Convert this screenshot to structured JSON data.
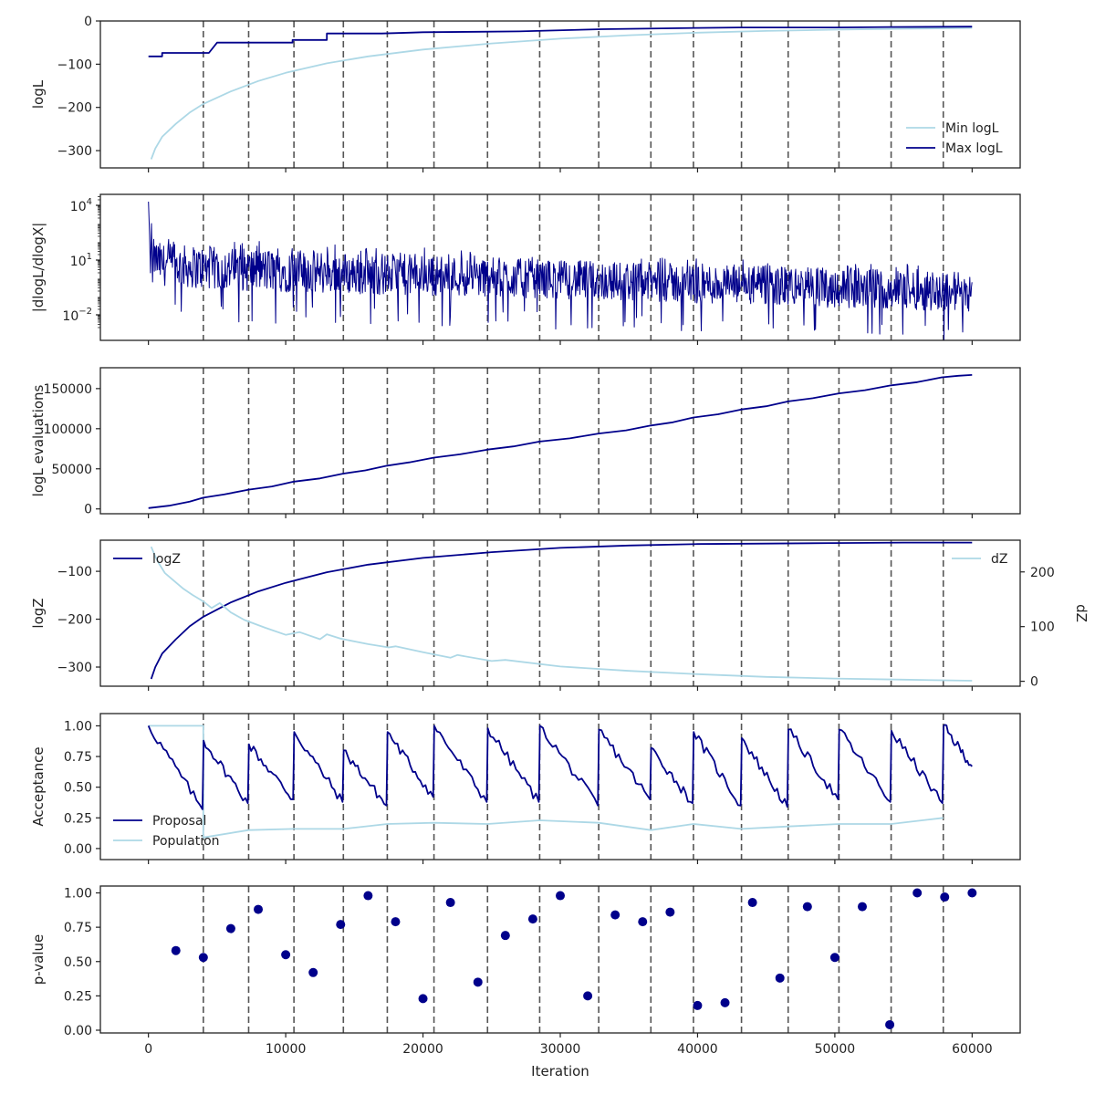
{
  "figure": {
    "shared_xlabel": "Iteration",
    "x_ticks": [
      0,
      10000,
      20000,
      30000,
      40000,
      50000,
      60000
    ],
    "xlim": [
      -3500,
      63500
    ]
  },
  "colors": {
    "dark": "#00008b",
    "light": "#add8e6",
    "vline": "#555555"
  },
  "chart_data": [
    {
      "type": "line",
      "ylabel": "logL",
      "ylim": [
        -340,
        0
      ],
      "y_ticks": [
        0,
        -100,
        -200,
        -300
      ],
      "legend": "bottom-right",
      "series": [
        {
          "name": "Min logL",
          "x": [
            200,
            500,
            1000,
            2000,
            3000,
            4000,
            6000,
            8000,
            10000,
            13000,
            16000,
            20000,
            25000,
            30000,
            35000,
            40000,
            45000,
            50000,
            55000,
            60000
          ],
          "y": [
            -320,
            -295,
            -268,
            -238,
            -212,
            -192,
            -163,
            -139,
            -120,
            -98,
            -82,
            -66,
            -52,
            -41,
            -33,
            -27,
            -23,
            -20,
            -18,
            -16
          ]
        },
        {
          "name": "Max logL",
          "x": [
            0,
            1000,
            1000,
            4400,
            5000,
            10500,
            10500,
            13000,
            13000,
            17000,
            19000,
            20000,
            24000,
            27000,
            33000,
            40000,
            43000,
            50000,
            54000,
            60000
          ],
          "y": [
            -82,
            -82,
            -74,
            -74,
            -50,
            -50,
            -44,
            -44,
            -29,
            -29,
            -27,
            -26,
            -25,
            -24,
            -19,
            -16,
            -15,
            -15,
            -14,
            -13
          ]
        }
      ]
    },
    {
      "type": "line",
      "ylabel": "|dlogL/dlogX|",
      "yscale": "log",
      "ylim_log10": [
        -3.4,
        4.6
      ],
      "y_ticks": [
        {
          "base": "10",
          "exp": "4",
          "v": 4
        },
        {
          "base": "10",
          "exp": "1",
          "v": 1
        },
        {
          "base": "10",
          "exp": "−2",
          "v": -2
        }
      ],
      "series": [
        {
          "name": "",
          "envelope_x": [
            0,
            1000,
            5000,
            10000,
            15000,
            20000,
            25000,
            30000,
            35000,
            40000,
            45000,
            50000,
            55000,
            60000
          ],
          "envelope_upper_log10": [
            2.3,
            1.9,
            1.7,
            1.6,
            1.4,
            1.3,
            1.15,
            1.0,
            0.9,
            0.8,
            0.7,
            0.6,
            0.5,
            0.4
          ],
          "envelope_lower_log10": [
            0.0,
            -0.8,
            -1.1,
            -1.2,
            -1.3,
            -1.35,
            -1.4,
            -1.5,
            -1.6,
            -1.8,
            -1.9,
            -2.0,
            -2.1,
            -2.2
          ],
          "peak": [
            0,
            4.2
          ]
        }
      ]
    },
    {
      "type": "line",
      "ylabel": "logL evaluations",
      "ylim": [
        -6000,
        176000
      ],
      "y_ticks": [
        0,
        50000,
        100000,
        150000
      ],
      "series": [
        {
          "name": "",
          "x": [
            0,
            1500,
            3000,
            4000,
            5500,
            7300,
            9000,
            10600,
            12500,
            14200,
            15800,
            17400,
            19000,
            20800,
            22700,
            24700,
            26600,
            28500,
            30700,
            32800,
            34800,
            36600,
            38200,
            39700,
            41500,
            43200,
            45000,
            46600,
            48400,
            50300,
            52200,
            54100,
            56000,
            57800,
            59000,
            60000
          ],
          "y": [
            1000,
            4000,
            9000,
            14000,
            18000,
            24000,
            28000,
            34000,
            38000,
            44000,
            48000,
            54000,
            58000,
            64000,
            68000,
            74000,
            78000,
            84000,
            88000,
            94000,
            98000,
            104000,
            108000,
            114000,
            118000,
            124000,
            128000,
            134000,
            138000,
            144000,
            148000,
            154000,
            158000,
            164000,
            166000,
            167000
          ]
        }
      ]
    },
    {
      "type": "line",
      "ylabel": "logZ",
      "ylim": [
        -340,
        -35
      ],
      "y_ticks": [
        -100,
        -200,
        -300
      ],
      "y2label": "dZ",
      "y2lim": [
        -9,
        258
      ],
      "y2_ticks": [
        0,
        100,
        200
      ],
      "legend_left": "top-left",
      "legend_right": "top-right",
      "series": [
        {
          "name": "logZ",
          "axis": "left",
          "x": [
            200,
            500,
            1000,
            2000,
            3000,
            4000,
            6000,
            8000,
            10000,
            13000,
            16000,
            20000,
            25000,
            30000,
            35000,
            40000,
            45000,
            50000,
            55000,
            60000
          ],
          "y": [
            -325,
            -300,
            -272,
            -242,
            -215,
            -195,
            -165,
            -142,
            -124,
            -102,
            -86,
            -72,
            -60,
            -51,
            -46,
            -43,
            -42,
            -41,
            -40,
            -40
          ]
        },
        {
          "name": "dZ",
          "axis": "right",
          "x": [
            200,
            500,
            800,
            1200,
            1800,
            2500,
            3200,
            4000,
            4600,
            5200,
            6000,
            7000,
            8500,
            10000,
            11000,
            12500,
            13000,
            14000,
            16000,
            17500,
            18000,
            20000,
            22000,
            22500,
            25000,
            26000,
            30000,
            35000,
            40000,
            45000,
            50000,
            55000,
            60000
          ],
          "y": [
            246,
            228,
            214,
            198,
            185,
            170,
            158,
            146,
            134,
            143,
            126,
            112,
            98,
            85,
            90,
            77,
            86,
            78,
            68,
            62,
            64,
            53,
            43,
            48,
            37,
            39,
            27,
            19,
            13,
            8,
            5,
            3,
            1
          ]
        }
      ]
    },
    {
      "type": "line",
      "ylabel": "Acceptance",
      "ylim": [
        -0.09,
        1.1
      ],
      "y_ticks": [
        0.0,
        0.25,
        0.5,
        0.75,
        1.0
      ],
      "y_tick_labels": [
        "0.00",
        "0.25",
        "0.50",
        "0.75",
        "1.00"
      ],
      "legend": "bottom-left",
      "series": [
        {
          "name": "Proposal",
          "restarts_x": [
            0,
            4000,
            7300,
            10600,
            14200,
            17400,
            20800,
            24700,
            28500,
            32800,
            36600,
            39700,
            43200,
            46600,
            50300,
            54100,
            57900
          ],
          "peak_y": [
            1.0,
            0.88,
            0.85,
            0.95,
            0.8,
            0.95,
            1.0,
            0.98,
            1.0,
            0.97,
            0.82,
            0.95,
            0.9,
            0.97,
            0.97,
            0.96,
            1.0
          ],
          "trough_y": [
            0.32,
            0.37,
            0.4,
            0.38,
            0.35,
            0.42,
            0.38,
            0.38,
            0.35,
            0.4,
            0.37,
            0.35,
            0.34,
            0.4,
            0.38,
            0.37,
            0.67
          ],
          "end_x": 60000
        },
        {
          "name": "Population",
          "x": [
            0,
            4000,
            4000,
            7300,
            10600,
            14200,
            17400,
            20800,
            24700,
            28500,
            32800,
            36600,
            39700,
            43200,
            46600,
            50300,
            54100,
            57900
          ],
          "y": [
            1.0,
            1.0,
            0.09,
            0.15,
            0.16,
            0.16,
            0.2,
            0.21,
            0.2,
            0.23,
            0.21,
            0.15,
            0.2,
            0.16,
            0.18,
            0.2,
            0.2,
            0.25
          ]
        }
      ]
    },
    {
      "type": "scatter",
      "ylabel": "p-value",
      "xlabel": "Iteration",
      "ylim": [
        -0.02,
        1.05
      ],
      "y_ticks": [
        0.0,
        0.25,
        0.5,
        0.75,
        1.0
      ],
      "y_tick_labels": [
        "0.00",
        "0.25",
        "0.50",
        "0.75",
        "1.00"
      ],
      "series": [
        {
          "name": "",
          "x": [
            2000,
            4000,
            6000,
            8000,
            10000,
            12000,
            14000,
            16000,
            18000,
            20000,
            22000,
            24000,
            26000,
            28000,
            30000,
            32000,
            34000,
            36000,
            38000,
            40000,
            42000,
            44000,
            46000,
            48000,
            50000,
            52000,
            54000,
            56000,
            58000,
            60000
          ],
          "y": [
            0.58,
            0.53,
            0.74,
            0.88,
            0.55,
            0.42,
            0.77,
            0.98,
            0.79,
            0.23,
            0.93,
            0.35,
            0.69,
            0.81,
            0.98,
            0.25,
            0.84,
            0.79,
            0.86,
            0.18,
            0.2,
            0.93,
            0.38,
            0.9,
            0.53,
            0.9,
            0.04,
            1.0,
            0.97,
            1.0
          ]
        }
      ]
    }
  ],
  "iteration_markers": [
    4000,
    7300,
    10600,
    14200,
    17400,
    20800,
    24700,
    28500,
    32800,
    36600,
    39700,
    43200,
    46600,
    50300,
    54100,
    57900
  ]
}
